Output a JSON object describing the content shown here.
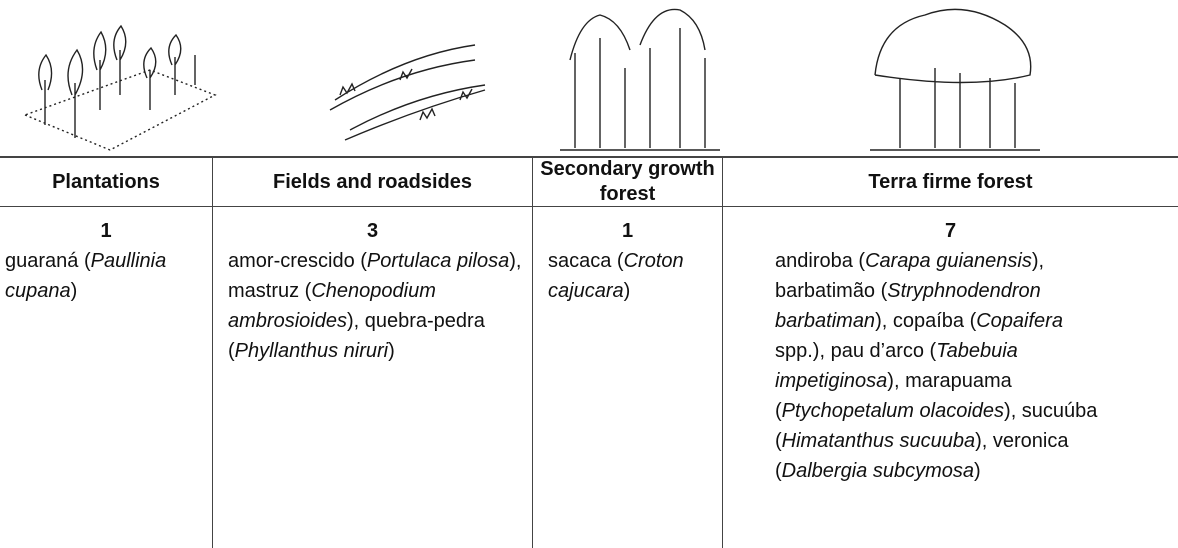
{
  "table": {
    "columns": [
      {
        "header": "Plantations",
        "count": 1,
        "segments": [
          {
            "text": "guaraná ",
            "italic": false
          },
          {
            "text": "(",
            "italic": false
          },
          {
            "text": "Paullinia cupana",
            "italic": true
          },
          {
            "text": ")",
            "italic": false
          }
        ]
      },
      {
        "header": "Fields and roadsides",
        "count": 3,
        "segments": [
          {
            "text": "amor-crescido (",
            "italic": false
          },
          {
            "text": "Portulaca pilosa",
            "italic": true
          },
          {
            "text": "), mastruz (",
            "italic": false
          },
          {
            "text": "Chenopodium ambrosioides",
            "italic": true
          },
          {
            "text": "), quebra-pedra (",
            "italic": false
          },
          {
            "text": "Phyllanthus niruri",
            "italic": true
          },
          {
            "text": ")",
            "italic": false
          }
        ]
      },
      {
        "header": "Secondary growth forest",
        "count": 1,
        "segments": [
          {
            "text": "sacaca (",
            "italic": false
          },
          {
            "text": "Croton cajucara",
            "italic": true
          },
          {
            "text": ")",
            "italic": false
          }
        ]
      },
      {
        "header": "Terra firme forest",
        "count": 7,
        "segments": [
          {
            "text": "andiroba (",
            "italic": false
          },
          {
            "text": "Carapa guianensis",
            "italic": true
          },
          {
            "text": "), barbatimão (",
            "italic": false
          },
          {
            "text": "Stryphnodendron barbatiman",
            "italic": true
          },
          {
            "text": "), copaíba (",
            "italic": false
          },
          {
            "text": "Copaifera",
            "italic": true
          },
          {
            "text": " spp.), pau d’arco (",
            "italic": false
          },
          {
            "text": "Tabebuia impetiginosa",
            "italic": true
          },
          {
            "text": "), marapuama (",
            "italic": false
          },
          {
            "text": "Ptychopetalum olacoides",
            "italic": true
          },
          {
            "text": "), sucuúba (",
            "italic": false
          },
          {
            "text": "Himatanthus sucuuba",
            "italic": true
          },
          {
            "text": "), veronica (",
            "italic": false
          },
          {
            "text": "Dalbergia subcymosa",
            "italic": true
          },
          {
            "text": ")",
            "italic": false
          }
        ]
      }
    ]
  }
}
